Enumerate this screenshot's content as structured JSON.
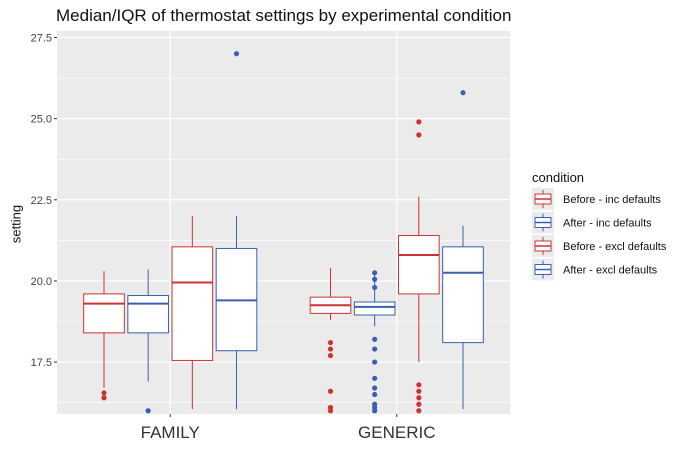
{
  "chart_data": {
    "type": "boxplot",
    "title": "Median/IQR of thermostat settings by experimental condition",
    "xlabel": "",
    "ylabel": "setting",
    "ylim": [
      15.9,
      27.7
    ],
    "yticks": [
      17.5,
      20.0,
      22.5,
      25.0,
      27.5
    ],
    "ytick_labels": [
      "17.5",
      "20.0",
      "22.5",
      "25.0",
      "27.5"
    ],
    "categories": [
      "FAMILY",
      "GENERIC"
    ],
    "grid": true,
    "legend_position": "right",
    "legend_title": "condition",
    "colors": {
      "before": "#cc3333",
      "after": "#3a5fb0",
      "panel": "#ebebeb",
      "grid": "#ffffff"
    },
    "series": [
      {
        "name": "Before - inc defaults",
        "color": "#cc3333",
        "boxes": [
          {
            "category": "FAMILY",
            "whisker_low": 16.7,
            "q1": 18.4,
            "median": 19.3,
            "q3": 19.6,
            "whisker_high": 20.3,
            "outliers": [
              16.4,
              16.55
            ]
          },
          {
            "category": "GENERIC",
            "whisker_low": 18.8,
            "q1": 19.0,
            "median": 19.25,
            "q3": 19.5,
            "whisker_high": 20.4,
            "outliers": [
              16.0,
              16.1,
              16.6,
              17.7,
              17.9,
              18.1
            ]
          }
        ]
      },
      {
        "name": "After - inc defaults",
        "color": "#3a5fb0",
        "boxes": [
          {
            "category": "FAMILY",
            "whisker_low": 16.9,
            "q1": 18.4,
            "median": 19.3,
            "q3": 19.55,
            "whisker_high": 20.35,
            "outliers": [
              16.0
            ]
          },
          {
            "category": "GENERIC",
            "whisker_low": 18.6,
            "q1": 18.95,
            "median": 19.2,
            "q3": 19.35,
            "whisker_high": 20.2,
            "outliers": [
              16.0,
              16.1,
              16.2,
              16.5,
              16.7,
              17.0,
              17.5,
              17.9,
              18.2,
              19.8,
              20.05,
              20.25
            ]
          }
        ]
      },
      {
        "name": "Before - excl defaults",
        "color": "#cc3333",
        "boxes": [
          {
            "category": "FAMILY",
            "whisker_low": 16.05,
            "q1": 17.55,
            "median": 19.95,
            "q3": 21.05,
            "whisker_high": 22.0,
            "outliers": []
          },
          {
            "category": "GENERIC",
            "whisker_low": 17.5,
            "q1": 19.6,
            "median": 20.8,
            "q3": 21.4,
            "whisker_high": 22.6,
            "outliers": [
              16.0,
              16.2,
              16.4,
              16.6,
              16.8,
              24.5,
              24.9
            ]
          }
        ]
      },
      {
        "name": "After - excl defaults",
        "color": "#3a5fb0",
        "boxes": [
          {
            "category": "FAMILY",
            "whisker_low": 16.05,
            "q1": 17.85,
            "median": 19.4,
            "q3": 21.0,
            "whisker_high": 22.0,
            "outliers": [
              27.0
            ]
          },
          {
            "category": "GENERIC",
            "whisker_low": 16.05,
            "q1": 18.1,
            "median": 20.25,
            "q3": 21.05,
            "whisker_high": 21.7,
            "outliers": [
              25.8
            ]
          }
        ]
      }
    ]
  }
}
